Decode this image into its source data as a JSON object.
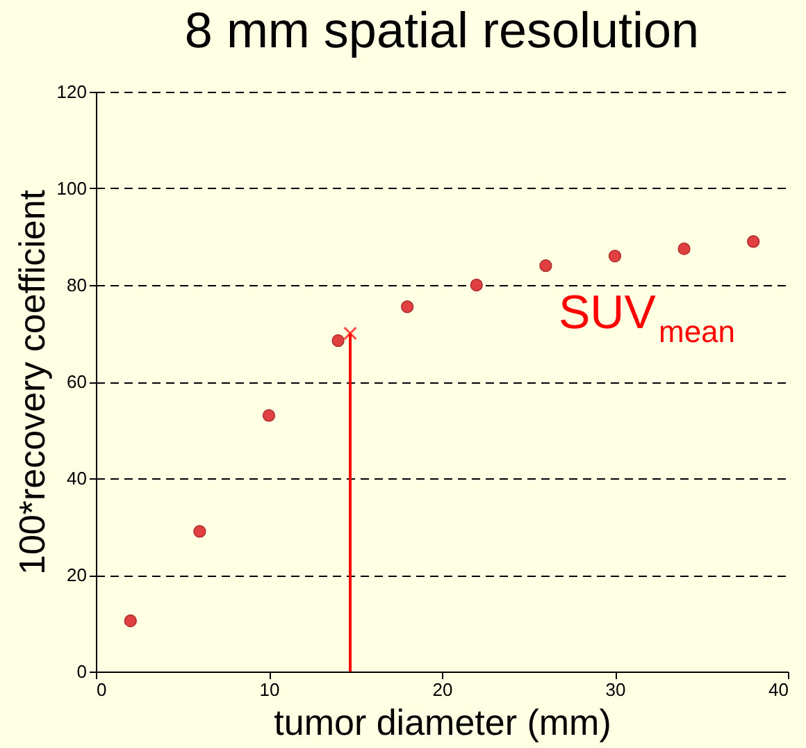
{
  "chart_data": {
    "type": "scatter",
    "title": "8 mm spatial resolution",
    "xlabel": "tumor diameter (mm)",
    "ylabel": "100*recovery coefficient",
    "xlim": [
      0,
      40
    ],
    "xticks": [
      0,
      10,
      20,
      30,
      40
    ],
    "ylim": [
      0,
      120
    ],
    "yticks": [
      0,
      20,
      40,
      60,
      80,
      100,
      120
    ],
    "grid": "y",
    "marker": "circle",
    "series": [
      {
        "color": "#e04040",
        "x": [
          2,
          6,
          10,
          14,
          18,
          22,
          26,
          30,
          34,
          38
        ],
        "values": [
          10.5,
          29,
          53,
          68.5,
          75.5,
          80,
          84,
          86,
          87.5,
          89
        ]
      },
      {
        "type": "line",
        "color": "#ff0000",
        "marker": "none",
        "x": [
          14.7,
          14.7
        ],
        "values": [
          0,
          70
        ]
      },
      {
        "type": "scatter",
        "color": "#ff0000",
        "marker": "cross",
        "x": [
          14.7
        ],
        "values": [
          70
        ]
      }
    ],
    "annotations": [
      "SUV$_{mean}$"
    ]
  }
}
